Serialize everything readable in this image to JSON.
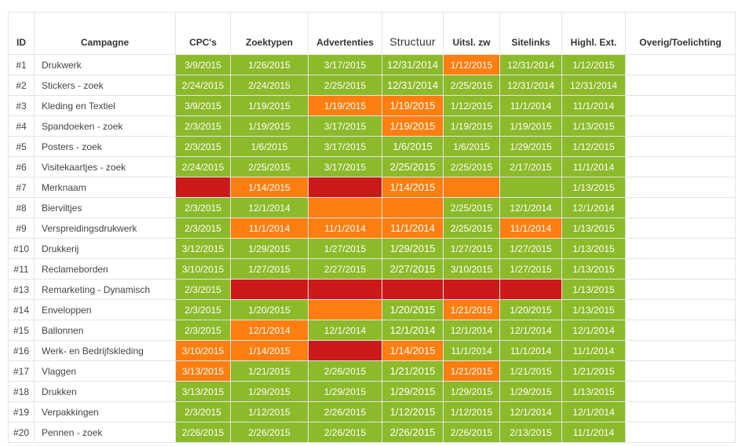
{
  "colors": {
    "green": "#8cba2a",
    "orange": "#fe7e10",
    "red": "#cc1919",
    "empty": "#ffffff"
  },
  "table": {
    "headers": [
      "ID",
      "Campagne",
      "CPC's",
      "Zoektypen",
      "Advertenties",
      "Structuur",
      "Uitsl. zw",
      "Sitelinks",
      "Highl. Ext.",
      "Overig/Toelichting"
    ],
    "rows": [
      {
        "id": "#1",
        "campaign": "Drukwerk",
        "cells": [
          {
            "v": "3/9/2015",
            "c": "g"
          },
          {
            "v": "1/26/2015",
            "c": "g"
          },
          {
            "v": "3/17/2015",
            "c": "g"
          },
          {
            "v": "12/31/2014",
            "c": "g"
          },
          {
            "v": "1/12/2015",
            "c": "o"
          },
          {
            "v": "12/31/2014",
            "c": "g"
          },
          {
            "v": "1/12/2015",
            "c": "g"
          },
          {
            "v": "",
            "c": "w"
          }
        ]
      },
      {
        "id": "#2",
        "campaign": "Stickers - zoek",
        "cells": [
          {
            "v": "2/24/2015",
            "c": "g"
          },
          {
            "v": "2/24/2015",
            "c": "g"
          },
          {
            "v": "2/25/2015",
            "c": "g"
          },
          {
            "v": "12/31/2014",
            "c": "g"
          },
          {
            "v": "2/25/2015",
            "c": "g"
          },
          {
            "v": "12/31/2014",
            "c": "g"
          },
          {
            "v": "12/31/2014",
            "c": "g"
          },
          {
            "v": "",
            "c": "w"
          }
        ]
      },
      {
        "id": "#3",
        "campaign": "Kleding en Textiel",
        "cells": [
          {
            "v": "3/9/2015",
            "c": "g"
          },
          {
            "v": "1/19/2015",
            "c": "g"
          },
          {
            "v": "1/19/2015",
            "c": "o"
          },
          {
            "v": "1/19/2015",
            "c": "o"
          },
          {
            "v": "1/12/2015",
            "c": "g"
          },
          {
            "v": "11/1/2014",
            "c": "g"
          },
          {
            "v": "11/1/2014",
            "c": "g"
          },
          {
            "v": "",
            "c": "w"
          }
        ]
      },
      {
        "id": "#4",
        "campaign": "Spandoeken - zoek",
        "cells": [
          {
            "v": "2/3/2015",
            "c": "g"
          },
          {
            "v": "1/19/2015",
            "c": "g"
          },
          {
            "v": "3/17/2015",
            "c": "g"
          },
          {
            "v": "1/19/2015",
            "c": "o"
          },
          {
            "v": "1/19/2015",
            "c": "g"
          },
          {
            "v": "1/19/2015",
            "c": "g"
          },
          {
            "v": "1/13/2015",
            "c": "g"
          },
          {
            "v": "",
            "c": "w"
          }
        ]
      },
      {
        "id": "#5",
        "campaign": "Posters - zoek",
        "cells": [
          {
            "v": "2/3/2015",
            "c": "g"
          },
          {
            "v": "1/6/2015",
            "c": "g"
          },
          {
            "v": "3/17/2015",
            "c": "g"
          },
          {
            "v": "1/6/2015",
            "c": "g"
          },
          {
            "v": "1/6/2015",
            "c": "g"
          },
          {
            "v": "1/29/2015",
            "c": "g"
          },
          {
            "v": "1/12/2015",
            "c": "g"
          },
          {
            "v": "",
            "c": "w"
          }
        ]
      },
      {
        "id": "#6",
        "campaign": "Visitekaartjes - zoek",
        "cells": [
          {
            "v": "2/24/2015",
            "c": "g"
          },
          {
            "v": "2/25/2015",
            "c": "g"
          },
          {
            "v": "3/17/2015",
            "c": "g"
          },
          {
            "v": "2/25/2015",
            "c": "g"
          },
          {
            "v": "2/25/2015",
            "c": "g"
          },
          {
            "v": "2/17/2015",
            "c": "g"
          },
          {
            "v": "11/1/2014",
            "c": "g"
          },
          {
            "v": "",
            "c": "w"
          }
        ]
      },
      {
        "id": "#7",
        "campaign": "Merknaam",
        "cells": [
          {
            "v": "",
            "c": "r"
          },
          {
            "v": "1/14/2015",
            "c": "o"
          },
          {
            "v": "",
            "c": "r"
          },
          {
            "v": "1/14/2015",
            "c": "o"
          },
          {
            "v": "",
            "c": "o"
          },
          {
            "v": "",
            "c": "g"
          },
          {
            "v": "1/13/2015",
            "c": "g"
          },
          {
            "v": "",
            "c": "w"
          }
        ]
      },
      {
        "id": "#8",
        "campaign": "Bierviltjes",
        "cells": [
          {
            "v": "2/3/2015",
            "c": "g"
          },
          {
            "v": "12/1/2014",
            "c": "g"
          },
          {
            "v": "",
            "c": "o"
          },
          {
            "v": "",
            "c": "o"
          },
          {
            "v": "2/25/2015",
            "c": "g"
          },
          {
            "v": "12/1/2014",
            "c": "g"
          },
          {
            "v": "12/1/2014",
            "c": "g"
          },
          {
            "v": "",
            "c": "w"
          }
        ]
      },
      {
        "id": "#9",
        "campaign": "Verspreidingsdrukwerk",
        "cells": [
          {
            "v": "2/3/2015",
            "c": "g"
          },
          {
            "v": "11/1/2014",
            "c": "o"
          },
          {
            "v": "11/1/2014",
            "c": "o"
          },
          {
            "v": "11/1/2014",
            "c": "o"
          },
          {
            "v": "2/25/2015",
            "c": "g"
          },
          {
            "v": "11/1/2014",
            "c": "o"
          },
          {
            "v": "1/13/2015",
            "c": "g"
          },
          {
            "v": "",
            "c": "w"
          }
        ]
      },
      {
        "id": "#10",
        "campaign": "Drukkerij",
        "cells": [
          {
            "v": "3/12/2015",
            "c": "g"
          },
          {
            "v": "1/29/2015",
            "c": "g"
          },
          {
            "v": "1/27/2015",
            "c": "g"
          },
          {
            "v": "1/29/2015",
            "c": "g"
          },
          {
            "v": "1/27/2015",
            "c": "g"
          },
          {
            "v": "1/27/2015",
            "c": "g"
          },
          {
            "v": "1/13/2015",
            "c": "g"
          },
          {
            "v": "",
            "c": "w"
          }
        ]
      },
      {
        "id": "#11",
        "campaign": "Reclameborden",
        "cells": [
          {
            "v": "3/10/2015",
            "c": "g"
          },
          {
            "v": "1/27/2015",
            "c": "g"
          },
          {
            "v": "2/27/2015",
            "c": "g"
          },
          {
            "v": "2/27/2015",
            "c": "g"
          },
          {
            "v": "3/10/2015",
            "c": "g"
          },
          {
            "v": "1/27/2015",
            "c": "g"
          },
          {
            "v": "1/13/2015",
            "c": "g"
          },
          {
            "v": "",
            "c": "w"
          }
        ]
      },
      {
        "id": "#13",
        "campaign": "Remarketing - Dynamisch",
        "cells": [
          {
            "v": "2/3/2015",
            "c": "g"
          },
          {
            "v": "",
            "c": "r"
          },
          {
            "v": "",
            "c": "r"
          },
          {
            "v": "",
            "c": "r"
          },
          {
            "v": "",
            "c": "r"
          },
          {
            "v": "",
            "c": "r"
          },
          {
            "v": "1/13/2015",
            "c": "g"
          },
          {
            "v": "",
            "c": "w"
          }
        ]
      },
      {
        "id": "#14",
        "campaign": "Enveloppen",
        "cells": [
          {
            "v": "2/3/2015",
            "c": "g"
          },
          {
            "v": "1/20/2015",
            "c": "g"
          },
          {
            "v": "",
            "c": "o"
          },
          {
            "v": "1/20/2015",
            "c": "g"
          },
          {
            "v": "1/21/2015",
            "c": "o"
          },
          {
            "v": "1/20/2015",
            "c": "g"
          },
          {
            "v": "1/13/2015",
            "c": "g"
          },
          {
            "v": "",
            "c": "w"
          }
        ]
      },
      {
        "id": "#15",
        "campaign": "Ballonnen",
        "cells": [
          {
            "v": "2/3/2015",
            "c": "g"
          },
          {
            "v": "12/1/2014",
            "c": "o"
          },
          {
            "v": "12/1/2014",
            "c": "g"
          },
          {
            "v": "12/1/2014",
            "c": "g"
          },
          {
            "v": "12/1/2014",
            "c": "g"
          },
          {
            "v": "12/1/2014",
            "c": "g"
          },
          {
            "v": "12/1/2014",
            "c": "g"
          },
          {
            "v": "",
            "c": "w"
          }
        ]
      },
      {
        "id": "#16",
        "campaign": "Werk- en Bedrijfskleding",
        "cells": [
          {
            "v": "3/10/2015",
            "c": "o"
          },
          {
            "v": "1/14/2015",
            "c": "o"
          },
          {
            "v": "",
            "c": "r"
          },
          {
            "v": "1/14/2015",
            "c": "o"
          },
          {
            "v": "11/1/2014",
            "c": "g"
          },
          {
            "v": "11/1/2014",
            "c": "g"
          },
          {
            "v": "11/1/2014",
            "c": "g"
          },
          {
            "v": "",
            "c": "w"
          }
        ]
      },
      {
        "id": "#17",
        "campaign": "Vlaggen",
        "cells": [
          {
            "v": "3/13/2015",
            "c": "o"
          },
          {
            "v": "1/21/2015",
            "c": "g"
          },
          {
            "v": "2/26/2015",
            "c": "g"
          },
          {
            "v": "1/21/2015",
            "c": "g"
          },
          {
            "v": "1/21/2015",
            "c": "o"
          },
          {
            "v": "1/21/2015",
            "c": "g"
          },
          {
            "v": "1/21/2015",
            "c": "g"
          },
          {
            "v": "",
            "c": "w"
          }
        ]
      },
      {
        "id": "#18",
        "campaign": "Drukken",
        "cells": [
          {
            "v": "3/13/2015",
            "c": "g"
          },
          {
            "v": "1/29/2015",
            "c": "g"
          },
          {
            "v": "1/29/2015",
            "c": "g"
          },
          {
            "v": "1/29/2015",
            "c": "g"
          },
          {
            "v": "1/29/2015",
            "c": "g"
          },
          {
            "v": "1/29/2015",
            "c": "g"
          },
          {
            "v": "1/13/2015",
            "c": "g"
          },
          {
            "v": "",
            "c": "w"
          }
        ]
      },
      {
        "id": "#19",
        "campaign": "Verpakkingen",
        "cells": [
          {
            "v": "2/3/2015",
            "c": "g"
          },
          {
            "v": "1/12/2015",
            "c": "g"
          },
          {
            "v": "2/26/2015",
            "c": "g"
          },
          {
            "v": "1/12/2015",
            "c": "g"
          },
          {
            "v": "1/12/2015",
            "c": "g"
          },
          {
            "v": "12/1/2014",
            "c": "g"
          },
          {
            "v": "12/1/2014",
            "c": "g"
          },
          {
            "v": "",
            "c": "w"
          }
        ]
      },
      {
        "id": "#20",
        "campaign": "Pennen - zoek",
        "cells": [
          {
            "v": "2/26/2015",
            "c": "g"
          },
          {
            "v": "2/26/2015",
            "c": "g"
          },
          {
            "v": "2/26/2015",
            "c": "g"
          },
          {
            "v": "2/26/2015",
            "c": "g"
          },
          {
            "v": "2/26/2015",
            "c": "g"
          },
          {
            "v": "2/13/2015",
            "c": "g"
          },
          {
            "v": "11/1/2014",
            "c": "g"
          },
          {
            "v": "",
            "c": "w"
          }
        ]
      }
    ]
  }
}
